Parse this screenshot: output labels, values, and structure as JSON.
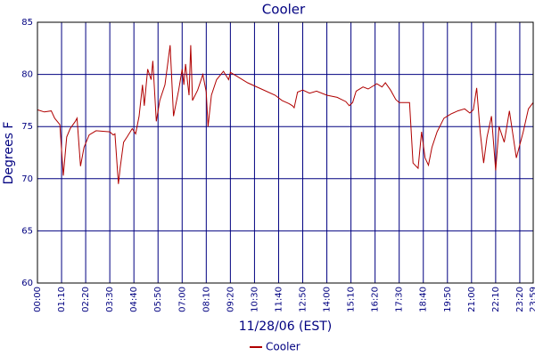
{
  "chart_data": {
    "type": "line",
    "title": "Cooler",
    "x_label": "11/28/06 (EST)",
    "y_label": "Degrees F",
    "x": [
      0,
      20,
      40,
      50,
      65,
      75,
      85,
      95,
      110,
      115,
      125,
      135,
      150,
      170,
      210,
      220,
      225,
      235,
      240,
      250,
      260,
      275,
      285,
      295,
      305,
      310,
      320,
      330,
      335,
      345,
      355,
      370,
      385,
      395,
      410,
      420,
      425,
      430,
      440,
      445,
      450,
      465,
      480,
      490,
      495,
      505,
      520,
      540,
      555,
      560,
      580,
      610,
      650,
      690,
      710,
      730,
      740,
      745,
      755,
      770,
      790,
      810,
      840,
      870,
      895,
      905,
      915,
      925,
      945,
      960,
      985,
      1000,
      1010,
      1025,
      1040,
      1050,
      1080,
      1090,
      1105,
      1115,
      1125,
      1135,
      1145,
      1160,
      1180,
      1200,
      1220,
      1240,
      1255,
      1265,
      1275,
      1285,
      1295,
      1305,
      1318,
      1330,
      1340,
      1355,
      1370,
      1390,
      1410,
      1425,
      1439
    ],
    "series": [
      {
        "name": "Cooler",
        "color": "#b00000",
        "values": [
          76.6,
          76.4,
          76.5,
          75.8,
          75.2,
          70.3,
          74,
          74.8,
          75.5,
          75.8,
          71.2,
          73,
          74.2,
          74.6,
          74.5,
          74.2,
          74.3,
          69.5,
          71,
          73.5,
          74,
          74.8,
          74.3,
          76,
          79,
          77,
          80.5,
          79.5,
          81.3,
          75.5,
          77.5,
          79,
          82.8,
          76,
          78.5,
          80.5,
          79,
          81,
          78,
          82.8,
          77.5,
          78.5,
          80,
          78.3,
          75,
          78,
          79.5,
          80.3,
          79.5,
          80.2,
          79.8,
          79.2,
          78.6,
          78,
          77.5,
          77.2,
          77,
          76.8,
          78.3,
          78.5,
          78.2,
          78.4,
          78,
          77.8,
          77.4,
          77,
          77.3,
          78.4,
          78.8,
          78.6,
          79.1,
          78.8,
          79.2,
          78.5,
          77.6,
          77.3,
          77.3,
          71.5,
          71,
          74.5,
          72,
          71.3,
          73,
          74.5,
          75.8,
          76.2,
          76.5,
          76.7,
          76.3,
          76.6,
          78.7,
          74.5,
          71.5,
          74,
          76,
          70.8,
          75,
          73.5,
          76.5,
          72,
          74.5,
          76.7,
          77.3
        ]
      }
    ],
    "xlim": [
      0,
      1439
    ],
    "xticks": [
      {
        "value": 0,
        "label": "00:00"
      },
      {
        "value": 70,
        "label": "01:10"
      },
      {
        "value": 140,
        "label": "02:20"
      },
      {
        "value": 210,
        "label": "03:30"
      },
      {
        "value": 280,
        "label": "04:40"
      },
      {
        "value": 350,
        "label": "05:50"
      },
      {
        "value": 420,
        "label": "07:00"
      },
      {
        "value": 490,
        "label": "08:10"
      },
      {
        "value": 560,
        "label": "09:20"
      },
      {
        "value": 630,
        "label": "10:30"
      },
      {
        "value": 700,
        "label": "11:40"
      },
      {
        "value": 770,
        "label": "12:50"
      },
      {
        "value": 840,
        "label": "14:00"
      },
      {
        "value": 910,
        "label": "15:10"
      },
      {
        "value": 980,
        "label": "16:20"
      },
      {
        "value": 1050,
        "label": "17:30"
      },
      {
        "value": 1120,
        "label": "18:40"
      },
      {
        "value": 1190,
        "label": "19:50"
      },
      {
        "value": 1260,
        "label": "21:00"
      },
      {
        "value": 1330,
        "label": "22:10"
      },
      {
        "value": 1400,
        "label": "23:20"
      },
      {
        "value": 1439,
        "label": "23:59"
      }
    ],
    "ylim": [
      60,
      85
    ],
    "yticks": [
      60,
      65,
      70,
      75,
      80,
      85
    ],
    "grid": true,
    "legend": "bottom"
  }
}
